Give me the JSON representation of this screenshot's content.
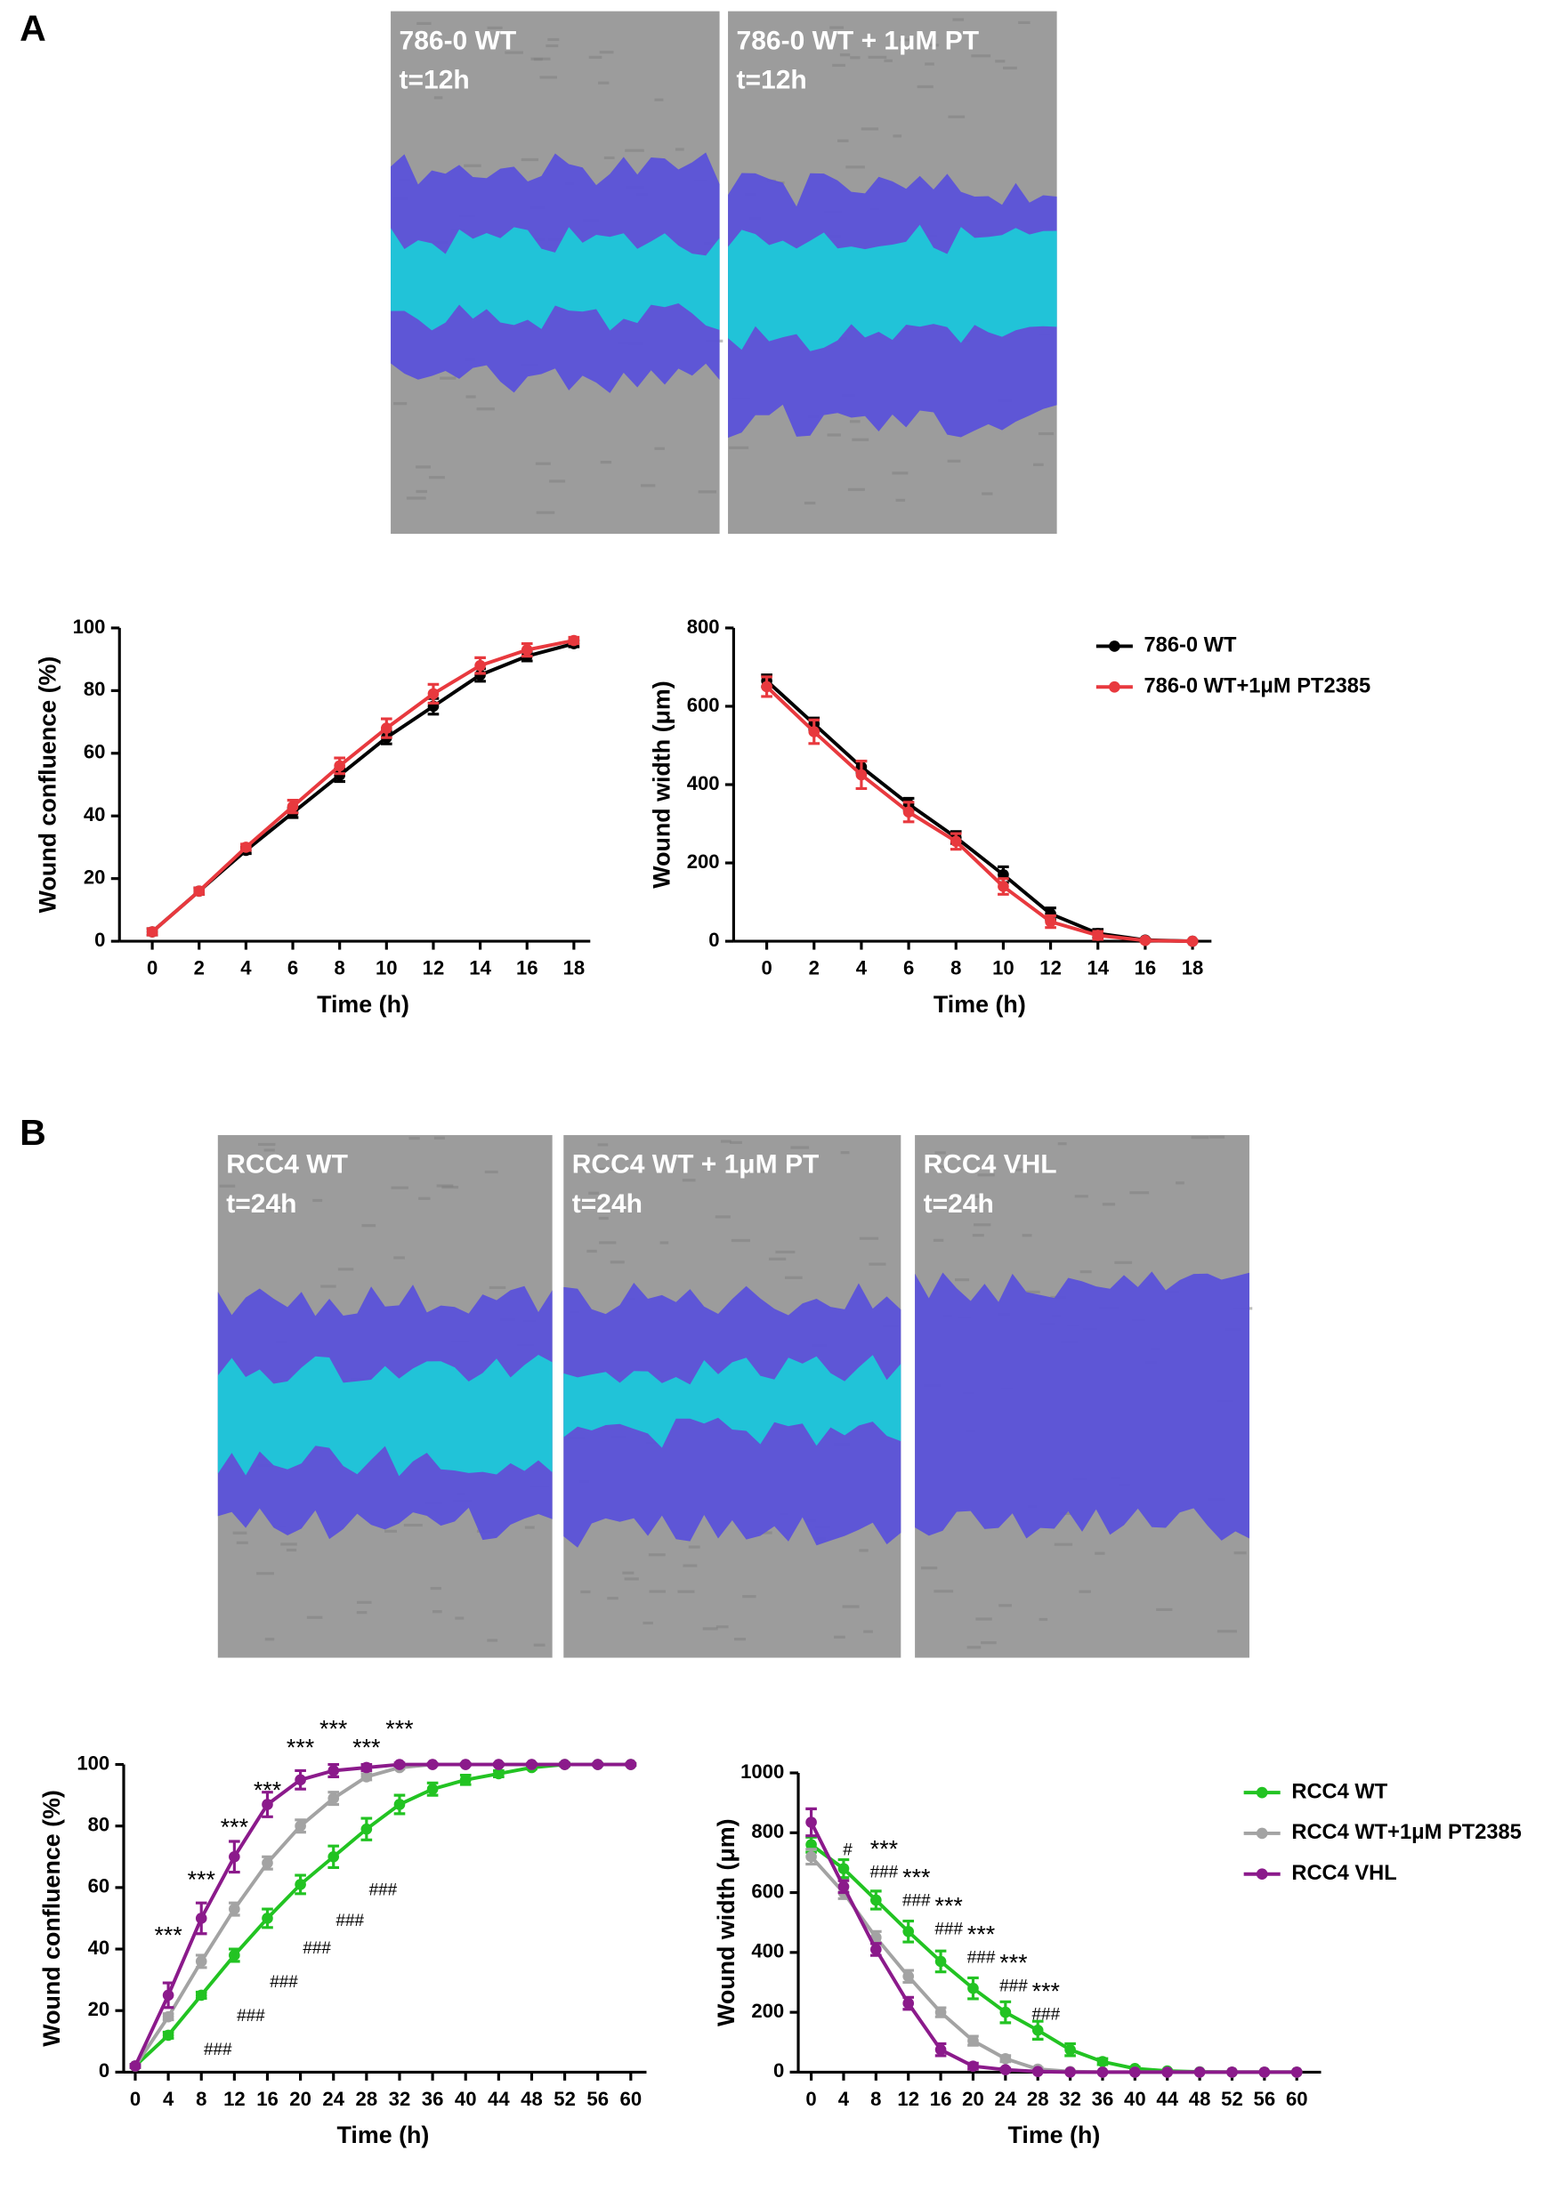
{
  "panel_labels": [
    "A",
    "B"
  ],
  "images": [
    {
      "title": "786-0 WT",
      "time": "t=12h"
    },
    {
      "title": "786-0 WT + 1μM PT",
      "time": "t=12h"
    },
    {
      "title": "RCC4 WT",
      "time": "t=24h"
    },
    {
      "title": "RCC4 WT + 1μM PT",
      "time": "t=24h"
    },
    {
      "title": "RCC4 VHL",
      "time": "t=24h"
    }
  ],
  "chart_data": [
    {
      "type": "line",
      "xlabel": "Time (h)",
      "ylabel": "Wound confluence (%)",
      "x": [
        0,
        2,
        4,
        6,
        8,
        10,
        12,
        14,
        16,
        18
      ],
      "xlim": [
        -1.4,
        18.7
      ],
      "xticks": [
        0,
        2,
        4,
        6,
        8,
        10,
        12,
        14,
        16,
        18
      ],
      "ylim": [
        0,
        100
      ],
      "yticks": [
        0,
        20,
        40,
        60,
        80,
        100
      ],
      "series": [
        {
          "color": "#000000",
          "values": [
            3,
            16,
            29,
            41,
            53,
            65,
            75,
            85,
            91,
            95
          ],
          "errors": [
            1,
            1,
            1,
            1.5,
            2,
            2,
            2.5,
            2,
            1.5,
            1
          ]
        },
        {
          "color": "#e8393e",
          "values": [
            3,
            16,
            30,
            43,
            56,
            68,
            79,
            88,
            93,
            96
          ],
          "errors": [
            1,
            1,
            1,
            2,
            2.5,
            3,
            3,
            2.5,
            2,
            1
          ]
        }
      ]
    },
    {
      "type": "line",
      "xlabel": "Time (h)",
      "ylabel": "Wound width (μm)",
      "legend": "right",
      "x": [
        0,
        2,
        4,
        6,
        8,
        10,
        12,
        14,
        16,
        18
      ],
      "xlim": [
        -1.4,
        18.8
      ],
      "xticks": [
        0,
        2,
        4,
        6,
        8,
        10,
        12,
        14,
        16,
        18
      ],
      "ylim": [
        0,
        800
      ],
      "yticks": [
        0,
        200,
        400,
        600,
        800
      ],
      "series": [
        {
          "name": "786-0 WT",
          "color": "#000000",
          "values": [
            665,
            555,
            445,
            350,
            265,
            170,
            70,
            20,
            3,
            0
          ],
          "errors": [
            15,
            15,
            15,
            15,
            15,
            20,
            15,
            10,
            3,
            2
          ]
        },
        {
          "name": "786-0 WT+1μM PT2385",
          "color": "#e8393e",
          "values": [
            650,
            535,
            425,
            330,
            255,
            140,
            50,
            15,
            2,
            0
          ],
          "errors": [
            25,
            30,
            35,
            25,
            20,
            20,
            15,
            10,
            3,
            2
          ]
        }
      ]
    },
    {
      "type": "line",
      "xlabel": "Time (h)",
      "ylabel": "Wound confluence (%)",
      "x": [
        0,
        4,
        8,
        12,
        16,
        20,
        24,
        28,
        32,
        36,
        40,
        44,
        48,
        52,
        56,
        60
      ],
      "xlim": [
        -1.4,
        61.9
      ],
      "xticks": [
        0,
        4,
        8,
        12,
        16,
        20,
        24,
        28,
        32,
        36,
        40,
        44,
        48,
        52,
        56,
        60
      ],
      "ylim": [
        0,
        100
      ],
      "yticks": [
        0,
        20,
        40,
        60,
        80,
        100
      ],
      "series": [
        {
          "color": "#22c322",
          "values": [
            2,
            12,
            25,
            38,
            50,
            61,
            70,
            79,
            87,
            92,
            95,
            97,
            99,
            100,
            100,
            100
          ],
          "errors": [
            0.5,
            1,
            1,
            2,
            3,
            3,
            3.5,
            3.5,
            3,
            2,
            1.5,
            1,
            0.5,
            0.5,
            0.3,
            0.3
          ]
        },
        {
          "color": "#a3a3a3",
          "values": [
            2,
            18,
            36,
            53,
            68,
            80,
            89,
            96,
            99,
            100,
            100,
            100,
            100,
            100,
            100,
            100
          ],
          "errors": [
            0.5,
            1,
            2,
            2,
            2,
            2,
            2,
            1,
            0.5,
            0.3,
            0.3,
            0.3,
            0.3,
            0.3,
            0.3,
            0.3
          ]
        },
        {
          "color": "#8b1a8b",
          "values": [
            2,
            25,
            50,
            70,
            87,
            95,
            98,
            99,
            100,
            100,
            100,
            100,
            100,
            100,
            100,
            100
          ],
          "errors": [
            0.5,
            4,
            5,
            5,
            4,
            3,
            2,
            1,
            0.5,
            0.3,
            0.3,
            0.3,
            0.3,
            0.3,
            0.3,
            0.3
          ]
        }
      ],
      "annotations": [
        {
          "text": "***",
          "x": 4,
          "y": 44
        },
        {
          "text": "***",
          "x": 8,
          "y": 62
        },
        {
          "text": "***",
          "x": 12,
          "y": 79
        },
        {
          "text": "***",
          "x": 16,
          "y": 91
        },
        {
          "text": "***",
          "x": 20,
          "y": 105
        },
        {
          "text": "***",
          "x": 24,
          "y": 111
        },
        {
          "text": "***",
          "x": 28,
          "y": 105
        },
        {
          "text": "***",
          "x": 32,
          "y": 111
        },
        {
          "text": "###",
          "x": 10,
          "y": 7
        },
        {
          "text": "###",
          "x": 14,
          "y": 18
        },
        {
          "text": "###",
          "x": 18,
          "y": 29
        },
        {
          "text": "###",
          "x": 22,
          "y": 40
        },
        {
          "text": "###",
          "x": 26,
          "y": 49
        },
        {
          "text": "###",
          "x": 30,
          "y": 59
        }
      ]
    },
    {
      "type": "line",
      "xlabel": "Time (h)",
      "ylabel": "Wound width (μm)",
      "legend": "right",
      "x": [
        0,
        4,
        8,
        12,
        16,
        20,
        24,
        28,
        32,
        36,
        40,
        44,
        48,
        52,
        56,
        60
      ],
      "xlim": [
        -1.6,
        63
      ],
      "xticks": [
        0,
        4,
        8,
        12,
        16,
        20,
        24,
        28,
        32,
        36,
        40,
        44,
        48,
        52,
        56,
        60
      ],
      "ylim": [
        0,
        1000
      ],
      "yticks": [
        0,
        200,
        400,
        600,
        800,
        1000
      ],
      "series": [
        {
          "name": "RCC4 WT",
          "color": "#22c322",
          "values": [
            760,
            680,
            575,
            470,
            370,
            280,
            200,
            140,
            75,
            35,
            12,
            4,
            1,
            0,
            0,
            0
          ],
          "errors": [
            25,
            30,
            30,
            35,
            35,
            35,
            35,
            30,
            20,
            10,
            5,
            3,
            2,
            1,
            1,
            1
          ]
        },
        {
          "name": "RCC4 WT+1μM PT2385",
          "color": "#a3a3a3",
          "values": [
            720,
            600,
            450,
            320,
            200,
            105,
            45,
            10,
            2,
            0,
            0,
            0,
            0,
            0,
            0,
            0
          ],
          "errors": [
            25,
            20,
            20,
            20,
            15,
            15,
            10,
            5,
            2,
            1,
            1,
            1,
            1,
            1,
            1,
            1
          ]
        },
        {
          "name": "RCC4 VHL",
          "color": "#8b1a8b",
          "values": [
            835,
            620,
            410,
            230,
            75,
            20,
            8,
            2,
            0,
            0,
            0,
            0,
            0,
            0,
            0,
            0
          ],
          "errors": [
            45,
            20,
            20,
            20,
            20,
            10,
            5,
            2,
            1,
            1,
            1,
            1,
            1,
            1,
            1,
            1
          ]
        }
      ],
      "annotations": [
        {
          "text": "#",
          "x": 4.5,
          "y": 740
        },
        {
          "text": "***",
          "x": 9,
          "y": 740
        },
        {
          "text": "***",
          "x": 13,
          "y": 645
        },
        {
          "text": "***",
          "x": 17,
          "y": 550
        },
        {
          "text": "***",
          "x": 21,
          "y": 455
        },
        {
          "text": "***",
          "x": 25,
          "y": 360
        },
        {
          "text": "***",
          "x": 29,
          "y": 265
        },
        {
          "text": "###",
          "x": 9,
          "y": 665
        },
        {
          "text": "###",
          "x": 13,
          "y": 570
        },
        {
          "text": "###",
          "x": 17,
          "y": 475
        },
        {
          "text": "###",
          "x": 21,
          "y": 380
        },
        {
          "text": "###",
          "x": 25,
          "y": 285
        },
        {
          "text": "###",
          "x": 29,
          "y": 190
        }
      ]
    }
  ]
}
